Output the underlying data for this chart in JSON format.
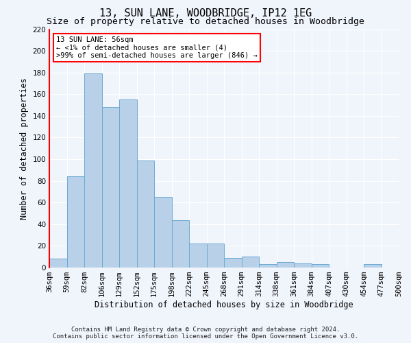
{
  "title": "13, SUN LANE, WOODBRIDGE, IP12 1EG",
  "subtitle": "Size of property relative to detached houses in Woodbridge",
  "xlabel": "Distribution of detached houses by size in Woodbridge",
  "ylabel": "Number of detached properties",
  "footer_line1": "Contains HM Land Registry data © Crown copyright and database right 2024.",
  "footer_line2": "Contains public sector information licensed under the Open Government Licence v3.0.",
  "bar_values": [
    8,
    84,
    179,
    148,
    155,
    99,
    65,
    44,
    22,
    22,
    9,
    10,
    3,
    5,
    4,
    3,
    0,
    0,
    3,
    0
  ],
  "x_labels": [
    "36sqm",
    "59sqm",
    "82sqm",
    "106sqm",
    "129sqm",
    "152sqm",
    "175sqm",
    "198sqm",
    "222sqm",
    "245sqm",
    "268sqm",
    "291sqm",
    "314sqm",
    "338sqm",
    "361sqm",
    "384sqm",
    "407sqm",
    "430sqm",
    "454sqm",
    "477sqm",
    "500sqm"
  ],
  "ylim": [
    0,
    220
  ],
  "yticks": [
    0,
    20,
    40,
    60,
    80,
    100,
    120,
    140,
    160,
    180,
    200,
    220
  ],
  "bar_color": "#b8d0e8",
  "bar_edge_color": "#6aaad4",
  "annotation_title": "13 SUN LANE: 56sqm",
  "annotation_line1": "← <1% of detached houses are smaller (4)",
  "annotation_line2": ">99% of semi-detached houses are larger (846) →",
  "bg_color": "#f0f4fb",
  "plot_bg_color": "#f0f4fb",
  "grid_color": "#ffffff",
  "title_fontsize": 11,
  "subtitle_fontsize": 9.5,
  "axis_label_fontsize": 8.5,
  "tick_fontsize": 7.5,
  "annotation_fontsize": 7.5,
  "footer_fontsize": 6.5
}
